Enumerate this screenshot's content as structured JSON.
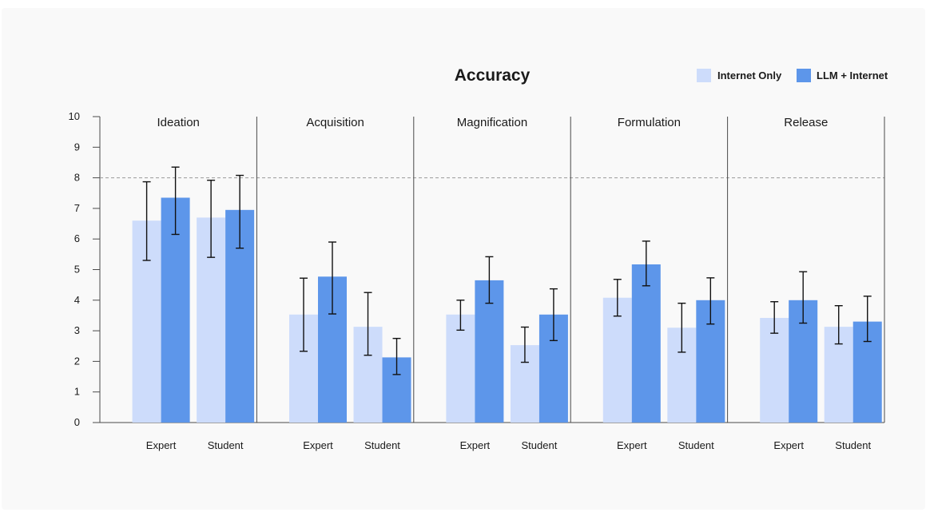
{
  "chart_data": {
    "type": "bar",
    "title": "Accuracy",
    "ylim": [
      0,
      10
    ],
    "yticks": [
      "0",
      "1",
      "2",
      "3",
      "4",
      "5",
      "6",
      "7",
      "8",
      "9",
      "10"
    ],
    "reference_line": 8,
    "legend": [
      {
        "name": "Internet Only",
        "color": "#cddcfb"
      },
      {
        "name": "LLM + Internet",
        "color": "#5d96ea"
      }
    ],
    "groups": [
      {
        "name": "Ideation",
        "subgroups": [
          {
            "name": "Expert",
            "bars": [
              {
                "value": 6.6,
                "err_low": 5.3,
                "err_high": 7.87
              },
              {
                "value": 7.35,
                "err_low": 6.15,
                "err_high": 8.35
              }
            ]
          },
          {
            "name": "Student",
            "bars": [
              {
                "value": 6.7,
                "err_low": 5.4,
                "err_high": 7.92
              },
              {
                "value": 6.95,
                "err_low": 5.7,
                "err_high": 8.08
              }
            ]
          }
        ]
      },
      {
        "name": "Acquisition",
        "subgroups": [
          {
            "name": "Expert",
            "bars": [
              {
                "value": 3.53,
                "err_low": 2.33,
                "err_high": 4.72
              },
              {
                "value": 4.77,
                "err_low": 3.55,
                "err_high": 5.9
              }
            ]
          },
          {
            "name": "Student",
            "bars": [
              {
                "value": 3.13,
                "err_low": 2.2,
                "err_high": 4.25
              },
              {
                "value": 2.13,
                "err_low": 1.57,
                "err_high": 2.75
              }
            ]
          }
        ]
      },
      {
        "name": "Magnification",
        "subgroups": [
          {
            "name": "Expert",
            "bars": [
              {
                "value": 3.53,
                "err_low": 3.02,
                "err_high": 4.0
              },
              {
                "value": 4.65,
                "err_low": 3.9,
                "err_high": 5.42
              }
            ]
          },
          {
            "name": "Student",
            "bars": [
              {
                "value": 2.53,
                "err_low": 1.97,
                "err_high": 3.12
              },
              {
                "value": 3.53,
                "err_low": 2.68,
                "err_high": 4.37
              }
            ]
          }
        ]
      },
      {
        "name": "Formulation",
        "subgroups": [
          {
            "name": "Expert",
            "bars": [
              {
                "value": 4.08,
                "err_low": 3.48,
                "err_high": 4.68
              },
              {
                "value": 5.17,
                "err_low": 4.47,
                "err_high": 5.93
              }
            ]
          },
          {
            "name": "Student",
            "bars": [
              {
                "value": 3.1,
                "err_low": 2.3,
                "err_high": 3.9
              },
              {
                "value": 4.0,
                "err_low": 3.22,
                "err_high": 4.73
              }
            ]
          }
        ]
      },
      {
        "name": "Release",
        "subgroups": [
          {
            "name": "Expert",
            "bars": [
              {
                "value": 3.42,
                "err_low": 2.92,
                "err_high": 3.95
              },
              {
                "value": 4.0,
                "err_low": 3.25,
                "err_high": 4.93
              }
            ]
          },
          {
            "name": "Student",
            "bars": [
              {
                "value": 3.13,
                "err_low": 2.57,
                "err_high": 3.82
              },
              {
                "value": 3.3,
                "err_low": 2.65,
                "err_high": 4.13
              }
            ]
          }
        ]
      }
    ]
  }
}
